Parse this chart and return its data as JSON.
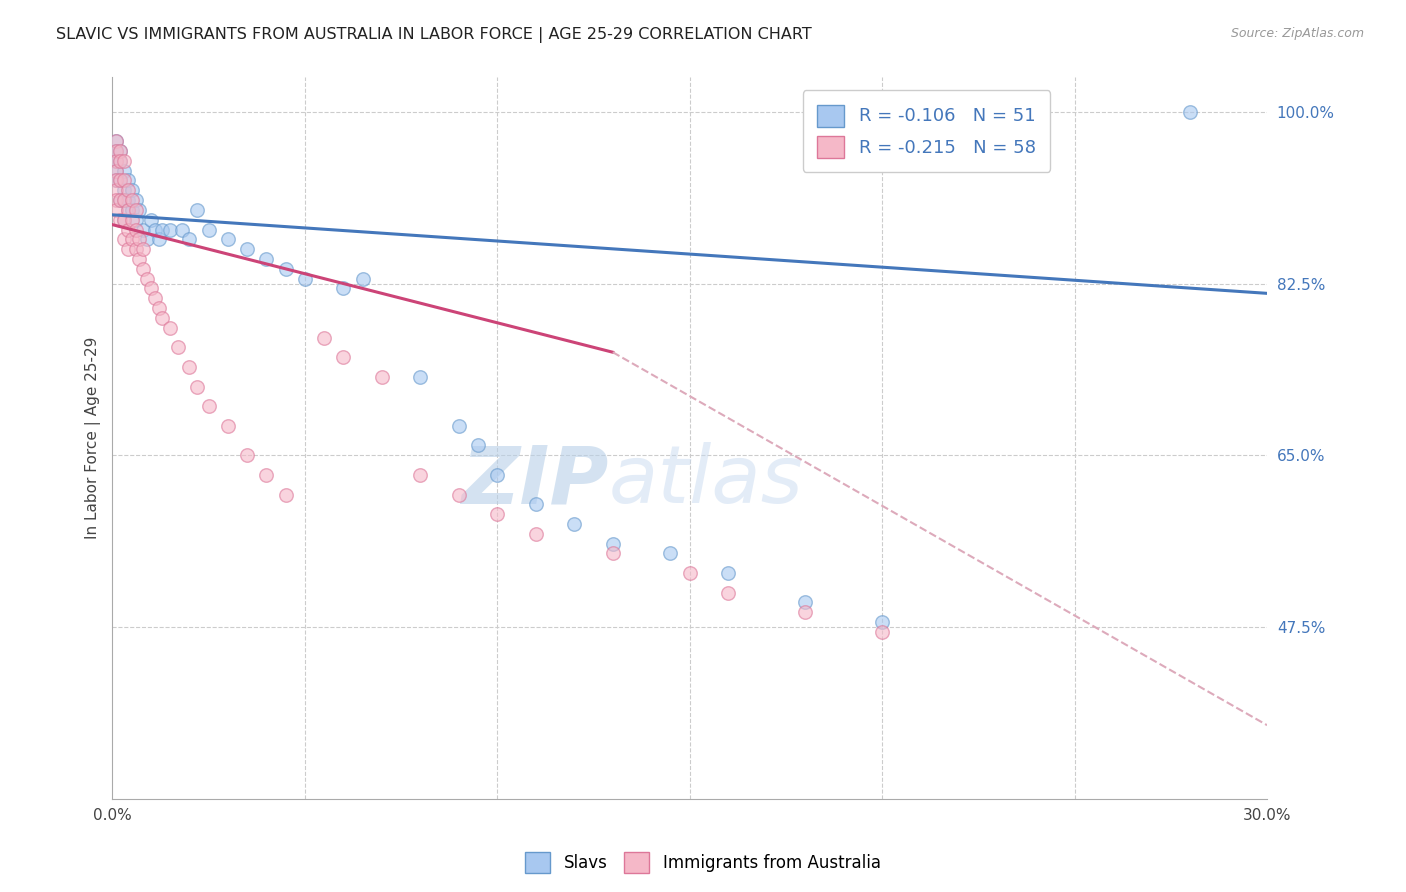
{
  "title": "SLAVIC VS IMMIGRANTS FROM AUSTRALIA IN LABOR FORCE | AGE 25-29 CORRELATION CHART",
  "source": "Source: ZipAtlas.com",
  "ylabel": "In Labor Force | Age 25-29",
  "x_min": 0.0,
  "x_max": 0.3,
  "y_min": 0.3,
  "y_max": 1.035,
  "y_ticks_right": [
    1.0,
    0.825,
    0.65,
    0.475
  ],
  "y_tick_labels_right": [
    "100.0%",
    "82.5%",
    "65.0%",
    "47.5%"
  ],
  "slavs_color": "#a8c8f0",
  "slavs_edge_color": "#6699cc",
  "australia_color": "#f5b8c8",
  "australia_edge_color": "#dd7799",
  "trend_slavs_color": "#4477bb",
  "trend_australia_color": "#cc4477",
  "trend_australia_dash_color": "#ddaabb",
  "watermark_zip": "ZIP",
  "watermark_atlas": "atlas",
  "watermark_color": "#d0e4f5",
  "grid_color": "#cccccc",
  "bg_color": "#ffffff",
  "marker_size": 95,
  "marker_alpha": 0.6,
  "legend_label_slavs": "Slavs",
  "legend_label_australia": "Immigrants from Australia",
  "legend_r_slavs": "R = -0.106   N = 51",
  "legend_r_australia": "R = -0.215   N = 58",
  "slavs_x": [
    0.001,
    0.001,
    0.001,
    0.001,
    0.001,
    0.002,
    0.002,
    0.002,
    0.002,
    0.003,
    0.003,
    0.003,
    0.003,
    0.004,
    0.004,
    0.004,
    0.005,
    0.005,
    0.006,
    0.006,
    0.007,
    0.008,
    0.009,
    0.01,
    0.011,
    0.012,
    0.013,
    0.015,
    0.018,
    0.02,
    0.022,
    0.025,
    0.03,
    0.035,
    0.04,
    0.045,
    0.05,
    0.06,
    0.065,
    0.08,
    0.09,
    0.095,
    0.1,
    0.11,
    0.12,
    0.13,
    0.145,
    0.16,
    0.18,
    0.2,
    0.28
  ],
  "slavs_y": [
    0.97,
    0.96,
    0.95,
    0.94,
    0.93,
    0.96,
    0.95,
    0.93,
    0.91,
    0.94,
    0.92,
    0.91,
    0.89,
    0.93,
    0.91,
    0.9,
    0.92,
    0.9,
    0.91,
    0.89,
    0.9,
    0.88,
    0.87,
    0.89,
    0.88,
    0.87,
    0.88,
    0.88,
    0.88,
    0.87,
    0.9,
    0.88,
    0.87,
    0.86,
    0.85,
    0.84,
    0.83,
    0.82,
    0.83,
    0.73,
    0.68,
    0.66,
    0.63,
    0.6,
    0.58,
    0.56,
    0.55,
    0.53,
    0.5,
    0.48,
    1.0
  ],
  "australia_x": [
    0.001,
    0.001,
    0.001,
    0.001,
    0.001,
    0.001,
    0.001,
    0.001,
    0.002,
    0.002,
    0.002,
    0.002,
    0.002,
    0.003,
    0.003,
    0.003,
    0.003,
    0.003,
    0.004,
    0.004,
    0.004,
    0.004,
    0.005,
    0.005,
    0.005,
    0.006,
    0.006,
    0.006,
    0.007,
    0.007,
    0.008,
    0.008,
    0.009,
    0.01,
    0.011,
    0.012,
    0.013,
    0.015,
    0.017,
    0.02,
    0.022,
    0.025,
    0.03,
    0.035,
    0.04,
    0.045,
    0.055,
    0.06,
    0.07,
    0.08,
    0.09,
    0.1,
    0.11,
    0.13,
    0.15,
    0.16,
    0.18,
    0.2
  ],
  "australia_y": [
    0.97,
    0.96,
    0.95,
    0.94,
    0.93,
    0.92,
    0.91,
    0.9,
    0.96,
    0.95,
    0.93,
    0.91,
    0.89,
    0.95,
    0.93,
    0.91,
    0.89,
    0.87,
    0.92,
    0.9,
    0.88,
    0.86,
    0.91,
    0.89,
    0.87,
    0.9,
    0.88,
    0.86,
    0.87,
    0.85,
    0.86,
    0.84,
    0.83,
    0.82,
    0.81,
    0.8,
    0.79,
    0.78,
    0.76,
    0.74,
    0.72,
    0.7,
    0.68,
    0.65,
    0.63,
    0.61,
    0.77,
    0.75,
    0.73,
    0.63,
    0.61,
    0.59,
    0.57,
    0.55,
    0.53,
    0.51,
    0.49,
    0.47
  ],
  "trend_slavs_x0": 0.0,
  "trend_slavs_y0": 0.895,
  "trend_slavs_x1": 0.3,
  "trend_slavs_y1": 0.815,
  "trend_aus_x0": 0.0,
  "trend_aus_y0": 0.885,
  "trend_aus_solid_x1": 0.13,
  "trend_aus_solid_y1": 0.755,
  "trend_aus_dash_x1": 0.3,
  "trend_aus_dash_y1": 0.375
}
